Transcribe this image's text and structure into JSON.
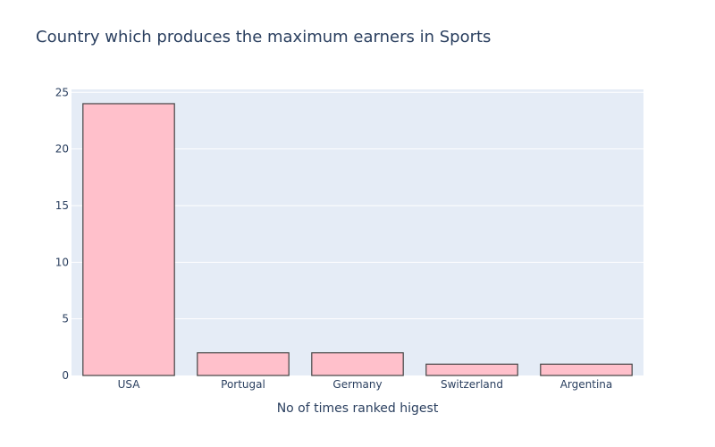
{
  "chart_data": {
    "type": "bar",
    "title": "Country which produces the maximum earners in Sports",
    "xlabel": "No of times ranked higest",
    "ylabel": "",
    "categories": [
      "USA",
      "Portugal",
      "Germany",
      "Switzerland",
      "Argentina"
    ],
    "values": [
      24,
      2,
      2,
      1,
      1
    ],
    "ylim": [
      0,
      25.26
    ],
    "yticks": [
      0,
      5,
      10,
      15,
      20,
      25
    ],
    "grid": true,
    "legend": "none",
    "colors": {
      "bar_fill": "#ffc0cb",
      "bar_stroke": "#444444",
      "plot_bg": "#e5ecf6",
      "grid": "#ffffff",
      "text": "#2a3f5f"
    }
  }
}
